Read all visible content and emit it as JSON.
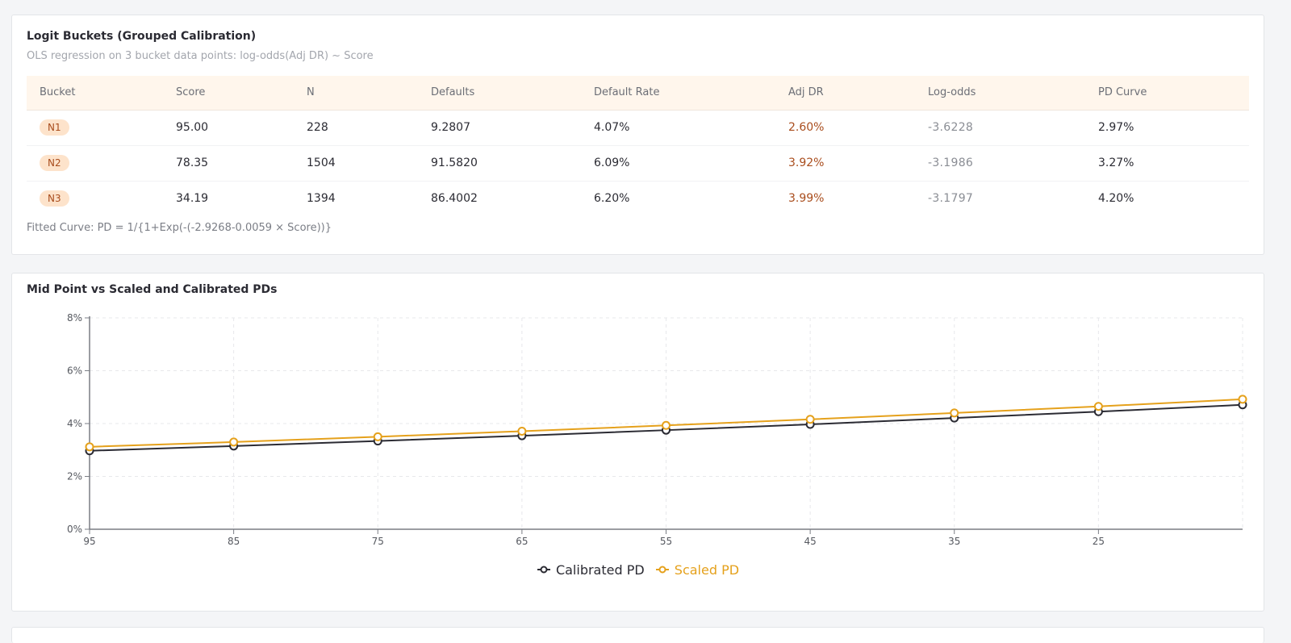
{
  "buckets_card": {
    "title": "Logit Buckets (Grouped Calibration)",
    "subtitle": "OLS regression on 3 bucket data points: log-odds(Adj DR) ~ Score",
    "columns": [
      "Bucket",
      "Score",
      "N",
      "Defaults",
      "Default Rate",
      "Adj DR",
      "Log-odds",
      "PD Curve"
    ],
    "rows": [
      {
        "bucket": "N1",
        "score": "95.00",
        "n": "228",
        "defaults": "9.2807",
        "default_rate": "4.07%",
        "adj_dr": "2.60%",
        "log_odds": "-3.6228",
        "pd_curve": "2.97%"
      },
      {
        "bucket": "N2",
        "score": "78.35",
        "n": "1504",
        "defaults": "91.5820",
        "default_rate": "6.09%",
        "adj_dr": "3.92%",
        "log_odds": "-3.1986",
        "pd_curve": "3.27%"
      },
      {
        "bucket": "N3",
        "score": "34.19",
        "n": "1394",
        "defaults": "86.4002",
        "default_rate": "6.20%",
        "adj_dr": "3.99%",
        "log_odds": "-3.1797",
        "pd_curve": "4.20%"
      }
    ],
    "formula": "Fitted Curve: PD = 1/{1+Exp(-(-2.9268-0.0059 × Score))}"
  },
  "chart_card": {
    "title": "Mid Point vs Scaled and Calibrated PDs"
  },
  "chart_data": {
    "type": "line",
    "title": "Mid Point vs Scaled and Calibrated PDs",
    "xlabel": "",
    "ylabel": "",
    "x": [
      95,
      85,
      75,
      65,
      55,
      45,
      35,
      25,
      15
    ],
    "x_tick_labels": [
      "95",
      "85",
      "75",
      "65",
      "55",
      "45",
      "35",
      "25"
    ],
    "x_reversed": true,
    "xlim": [
      95,
      15
    ],
    "ylim": [
      0,
      8
    ],
    "y_ticks": [
      0,
      2,
      4,
      6,
      8
    ],
    "y_tick_labels": [
      "0%",
      "2%",
      "4%",
      "6%",
      "8%"
    ],
    "grid": true,
    "legend_position": "bottom",
    "series": [
      {
        "name": "Calibrated PD",
        "color": "#2b2b33",
        "values": [
          2.97,
          3.15,
          3.34,
          3.54,
          3.75,
          3.97,
          4.21,
          4.45,
          4.71
        ]
      },
      {
        "name": "Scaled PD",
        "color": "#e5a11c",
        "values": [
          3.12,
          3.3,
          3.5,
          3.71,
          3.93,
          4.16,
          4.4,
          4.65,
          4.92
        ]
      }
    ]
  }
}
